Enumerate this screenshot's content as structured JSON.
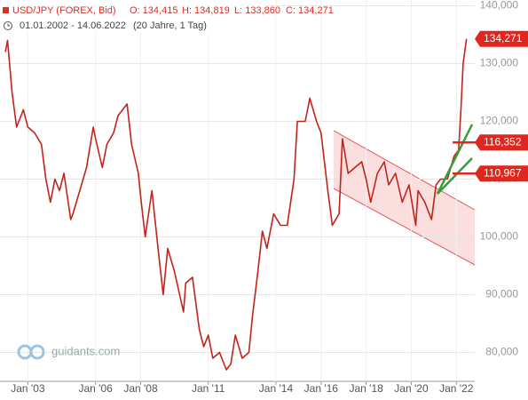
{
  "header": {
    "instrument": "USD/JPY (FOREX, Bid)",
    "open": "O: 134,415",
    "high": "H: 134,819",
    "low": "L: 133,860",
    "close": "C: 134,271",
    "range": "01.01.2002 - 14.06.2022",
    "period": "(20 Jahre, 1 Tag)"
  },
  "logo": "guidants.com",
  "chart_data": {
    "type": "line",
    "x": [
      2002.0,
      2002.1,
      2002.3,
      2002.5,
      2002.8,
      2003.0,
      2003.3,
      2003.6,
      2003.8,
      2004.0,
      2004.2,
      2004.4,
      2004.6,
      2004.9,
      2005.0,
      2005.3,
      2005.6,
      2005.9,
      2006.0,
      2006.3,
      2006.5,
      2006.8,
      2007.0,
      2007.4,
      2007.6,
      2007.9,
      2008.0,
      2008.2,
      2008.5,
      2008.8,
      2009.0,
      2009.2,
      2009.5,
      2009.9,
      2010.0,
      2010.3,
      2010.6,
      2010.8,
      2011.0,
      2011.2,
      2011.5,
      2011.8,
      2012.0,
      2012.2,
      2012.5,
      2012.8,
      2012.95,
      2013.2,
      2013.4,
      2013.6,
      2013.9,
      2014.2,
      2014.5,
      2014.8,
      2014.95,
      2015.3,
      2015.5,
      2015.8,
      2016.0,
      2016.3,
      2016.5,
      2016.8,
      2016.95,
      2017.2,
      2017.5,
      2017.8,
      2018.0,
      2018.2,
      2018.5,
      2018.8,
      2019.0,
      2019.3,
      2019.6,
      2019.9,
      2020.2,
      2020.3,
      2020.6,
      2020.9,
      2021.1,
      2021.3,
      2021.6,
      2021.9,
      2022.1,
      2022.2,
      2022.3,
      2022.45
    ],
    "series": [
      {
        "name": "USD/JPY",
        "color": "#c0241c",
        "values": [
          132,
          134,
          125,
          119,
          122,
          119,
          118,
          116,
          110,
          106,
          110,
          108,
          111,
          103,
          104,
          108,
          112,
          119,
          117,
          112,
          116,
          118,
          121,
          123,
          116,
          111,
          107,
          100,
          108,
          97,
          90,
          98,
          94,
          87,
          92,
          93,
          84,
          81,
          83,
          79,
          80,
          77,
          78,
          83,
          79,
          80,
          86,
          94,
          101,
          98,
          104,
          102,
          102,
          110,
          120,
          120,
          124,
          120,
          118,
          108,
          102,
          104,
          117,
          111,
          112,
          113,
          110,
          106,
          111,
          113,
          109,
          111,
          106,
          109,
          102,
          108,
          106,
          103,
          109,
          110,
          110,
          114,
          115,
          122,
          130,
          134.271
        ]
      }
    ],
    "xlim": [
      2002,
      2022.5
    ],
    "ylim": [
      75,
      141
    ],
    "xticks": [
      {
        "value": 2003,
        "label": "Jan '03"
      },
      {
        "value": 2006,
        "label": "Jan '06"
      },
      {
        "value": 2008,
        "label": "Jan '08"
      },
      {
        "value": 2011,
        "label": "Jan '11"
      },
      {
        "value": 2014,
        "label": "Jan '14"
      },
      {
        "value": 2016,
        "label": "Jan '16"
      },
      {
        "value": 2018,
        "label": "Jan '18"
      },
      {
        "value": 2020,
        "label": "Jan '20"
      },
      {
        "value": 2022,
        "label": "Jan '22"
      }
    ],
    "yticks": [
      {
        "value": 80,
        "label": "80,000"
      },
      {
        "value": 90,
        "label": "90,000"
      },
      {
        "value": 100,
        "label": "100,000"
      },
      {
        "value": 110,
        "label": "110,000"
      },
      {
        "value": 120,
        "label": "120,000"
      },
      {
        "value": 130,
        "label": "130,000"
      },
      {
        "value": 140,
        "label": "140,000"
      }
    ],
    "grid": true,
    "price_labels": [
      {
        "value": 134.271,
        "label": "134,271"
      },
      {
        "value": 116.352,
        "label": "116,352"
      },
      {
        "value": 110.967,
        "label": "110,967"
      }
    ],
    "label_color": "#e0261e"
  }
}
